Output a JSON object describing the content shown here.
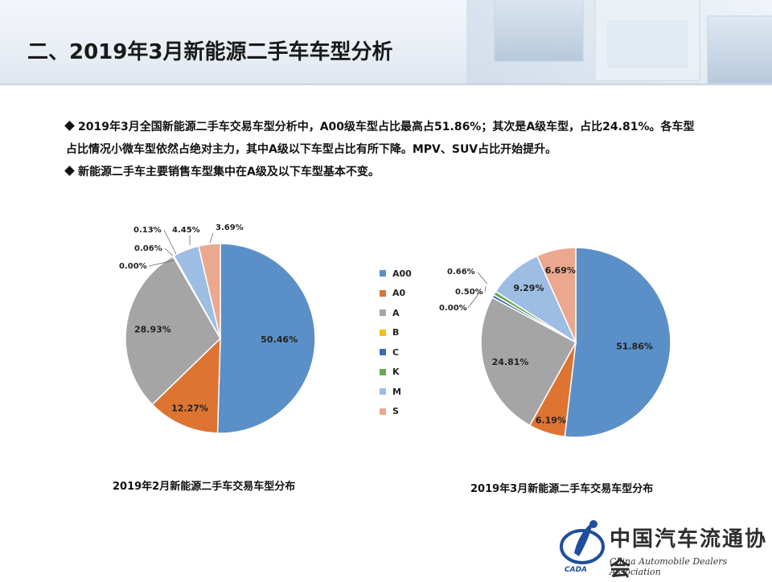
{
  "header": {
    "title": "二、2019年3月新能源二手车车型分析"
  },
  "bullets": [
    "2019年3月全国新能源二手车交易车型分析中，A00级车型占比最高占51.86%；其次是A级车型，占比24.81%。各车型占比情况小微车型依然占绝对主力，其中A级以下车型占比有所下降。MPV、SUV占比开始提升。",
    "新能源二手车主要销售车型集中在A级及以下车型基本不变。"
  ],
  "legend": {
    "items": [
      "A00",
      "A0",
      "A",
      "B",
      "C",
      "K",
      "M",
      "S"
    ],
    "colors": [
      "#5b8fc7",
      "#dd7431",
      "#a5a5a5",
      "#f3bd1a",
      "#3d6ab0",
      "#6aa84f",
      "#9dbde3",
      "#eba88e"
    ]
  },
  "chart_data": [
    {
      "type": "pie",
      "title": "2019年2月新能源二手车交易车型分布",
      "categories": [
        "A00",
        "A0",
        "A",
        "B",
        "C",
        "K",
        "M",
        "S"
      ],
      "values": [
        50.46,
        12.27,
        28.93,
        0.0,
        0.06,
        0.13,
        4.45,
        3.69
      ],
      "labels": [
        "50.46%",
        "12.27%",
        "28.93%",
        "0.00%",
        "0.06%",
        "0.13%",
        "4.45%",
        "3.69%"
      ]
    },
    {
      "type": "pie",
      "title": "2019年3月新能源二手车交易车型分布",
      "categories": [
        "A00",
        "A0",
        "A",
        "B",
        "C",
        "K",
        "M",
        "S"
      ],
      "values": [
        51.86,
        6.19,
        24.81,
        0.0,
        0.5,
        0.66,
        9.29,
        6.69
      ],
      "labels": [
        "51.86%",
        "6.19%",
        "24.81%",
        "0.00%",
        "0.50%",
        "0.66%",
        "9.29%",
        "6.69%"
      ]
    }
  ],
  "logo": {
    "name": "中国汽车流通协会",
    "english": "China Automobile Dealers Association",
    "abbr": "CADA"
  }
}
